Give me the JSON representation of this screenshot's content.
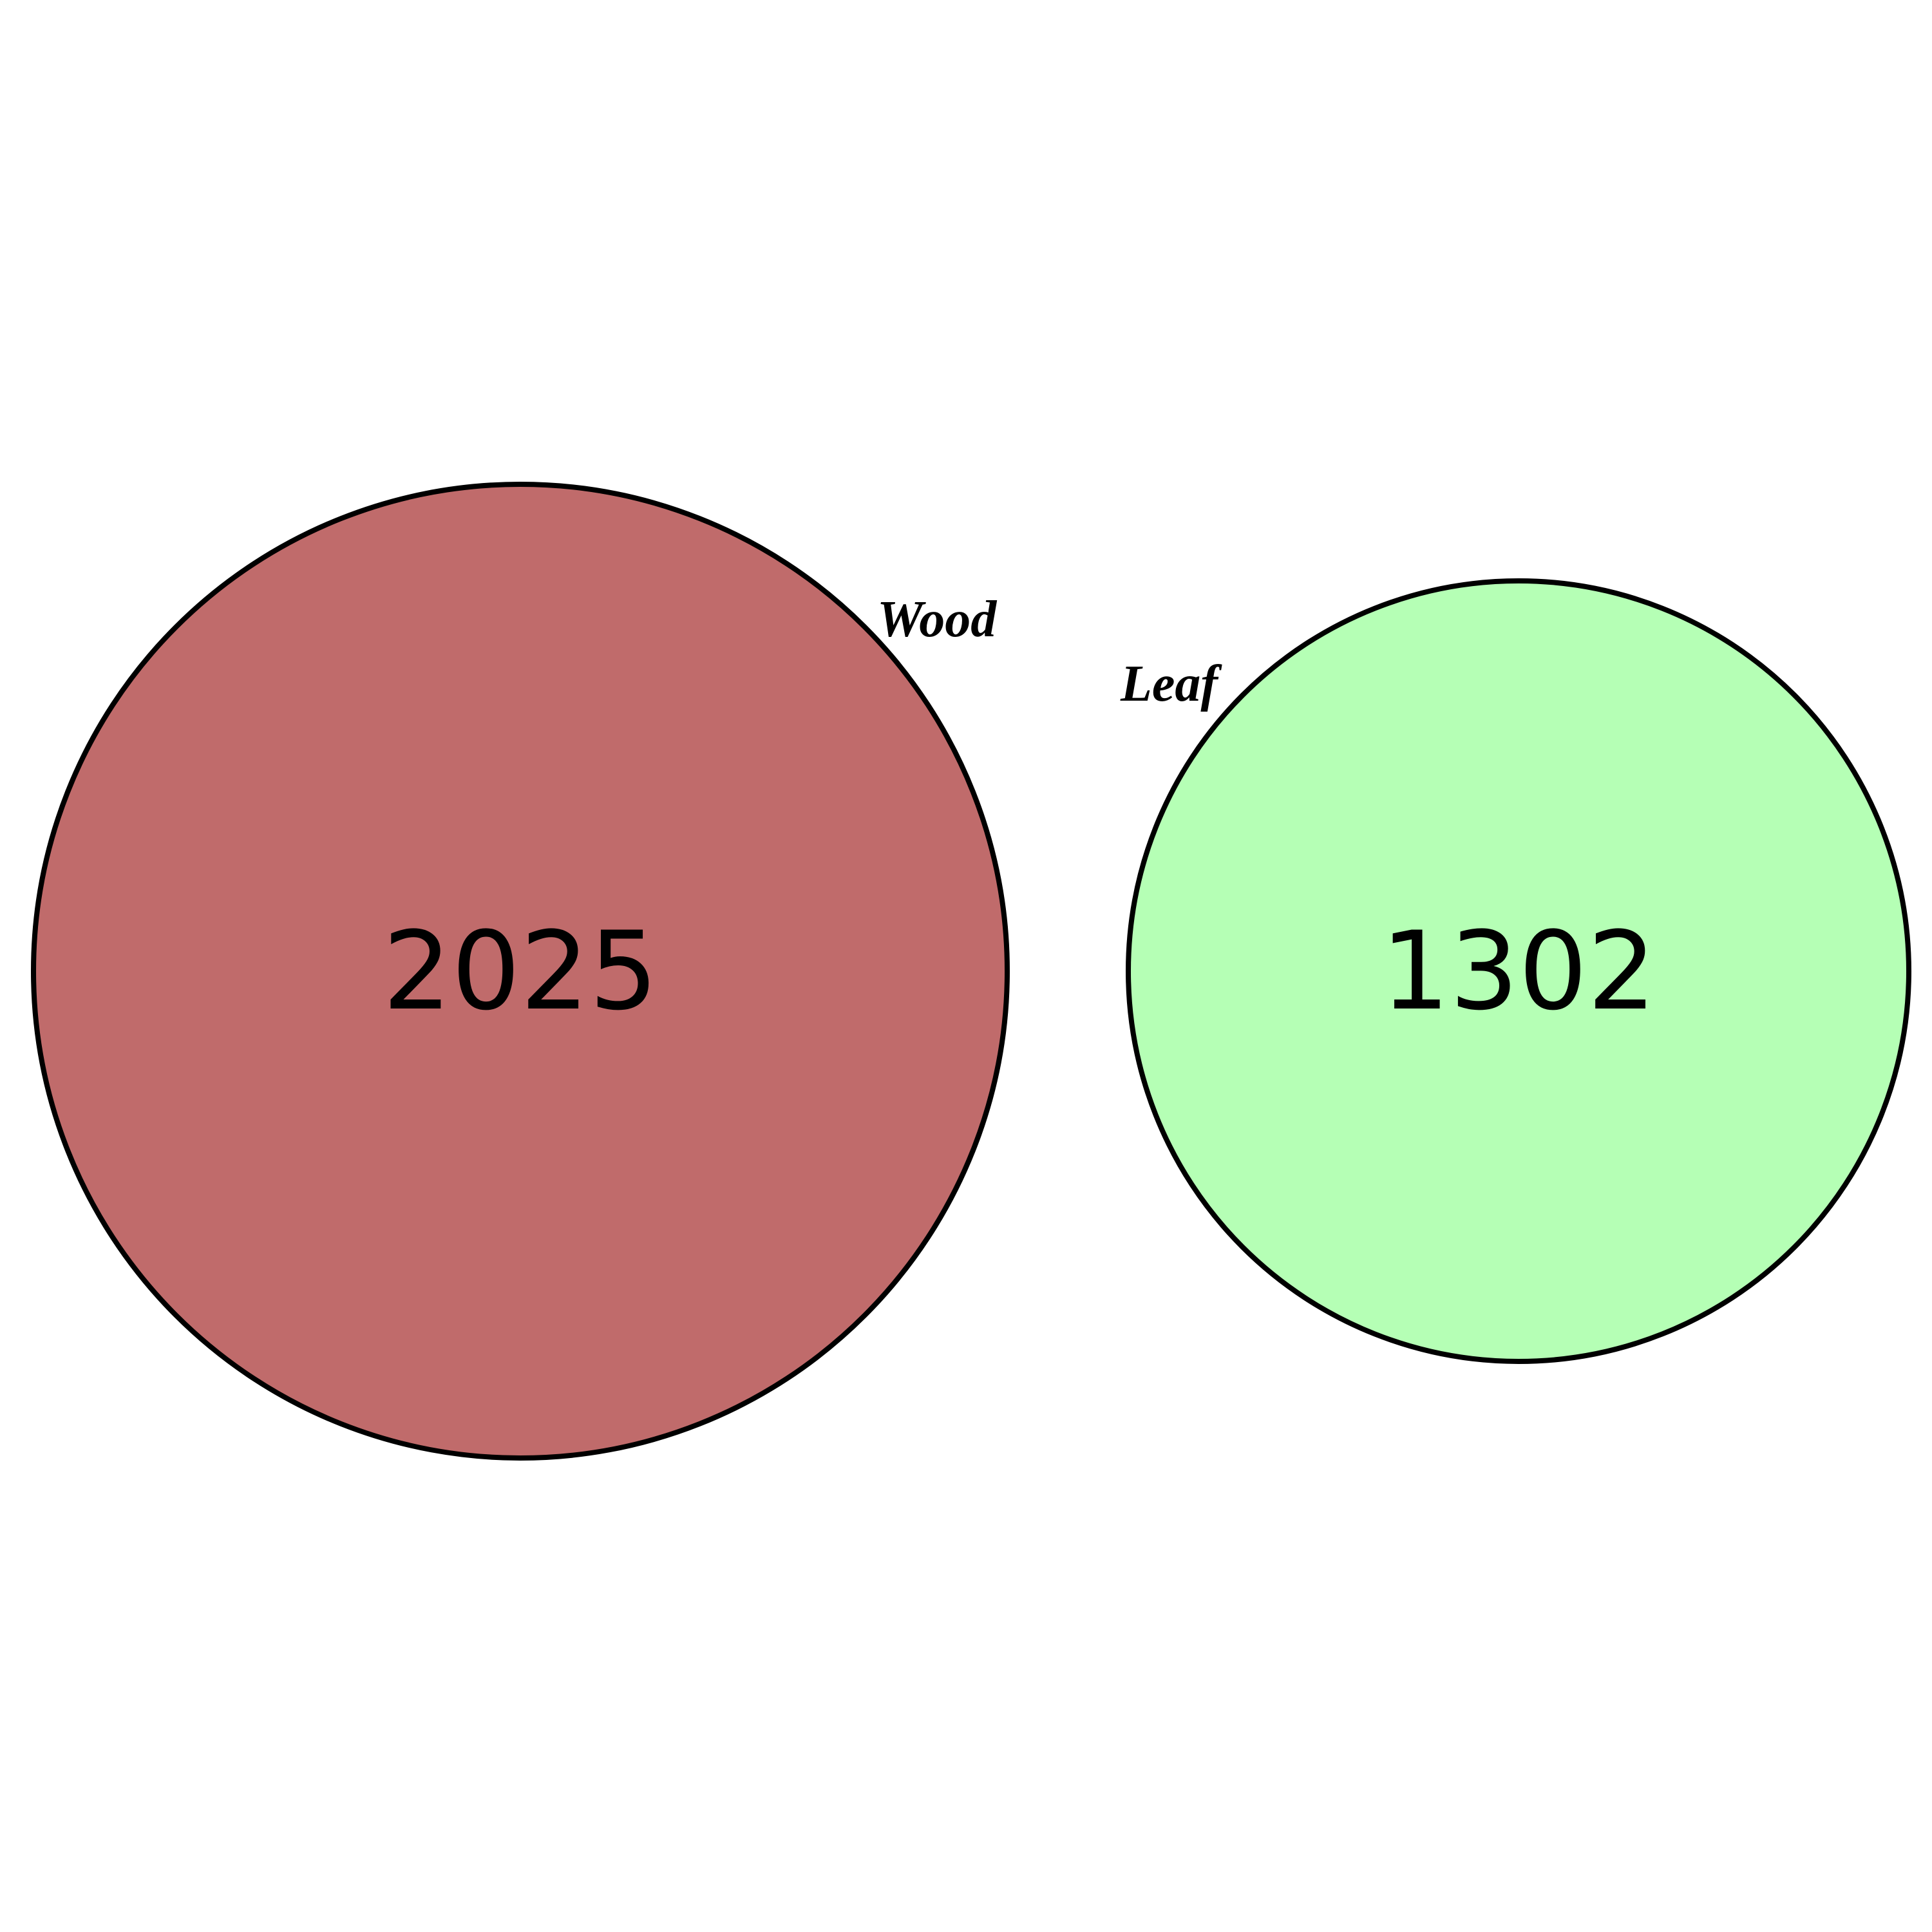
{
  "venn": {
    "sets": [
      {
        "name": "Wood",
        "count": "2025",
        "color": "#c06b6b"
      },
      {
        "name": "Leaf",
        "count": "1302",
        "color": "#b5ffb5"
      }
    ],
    "intersection_count": 0,
    "outline_color": "#000000"
  }
}
